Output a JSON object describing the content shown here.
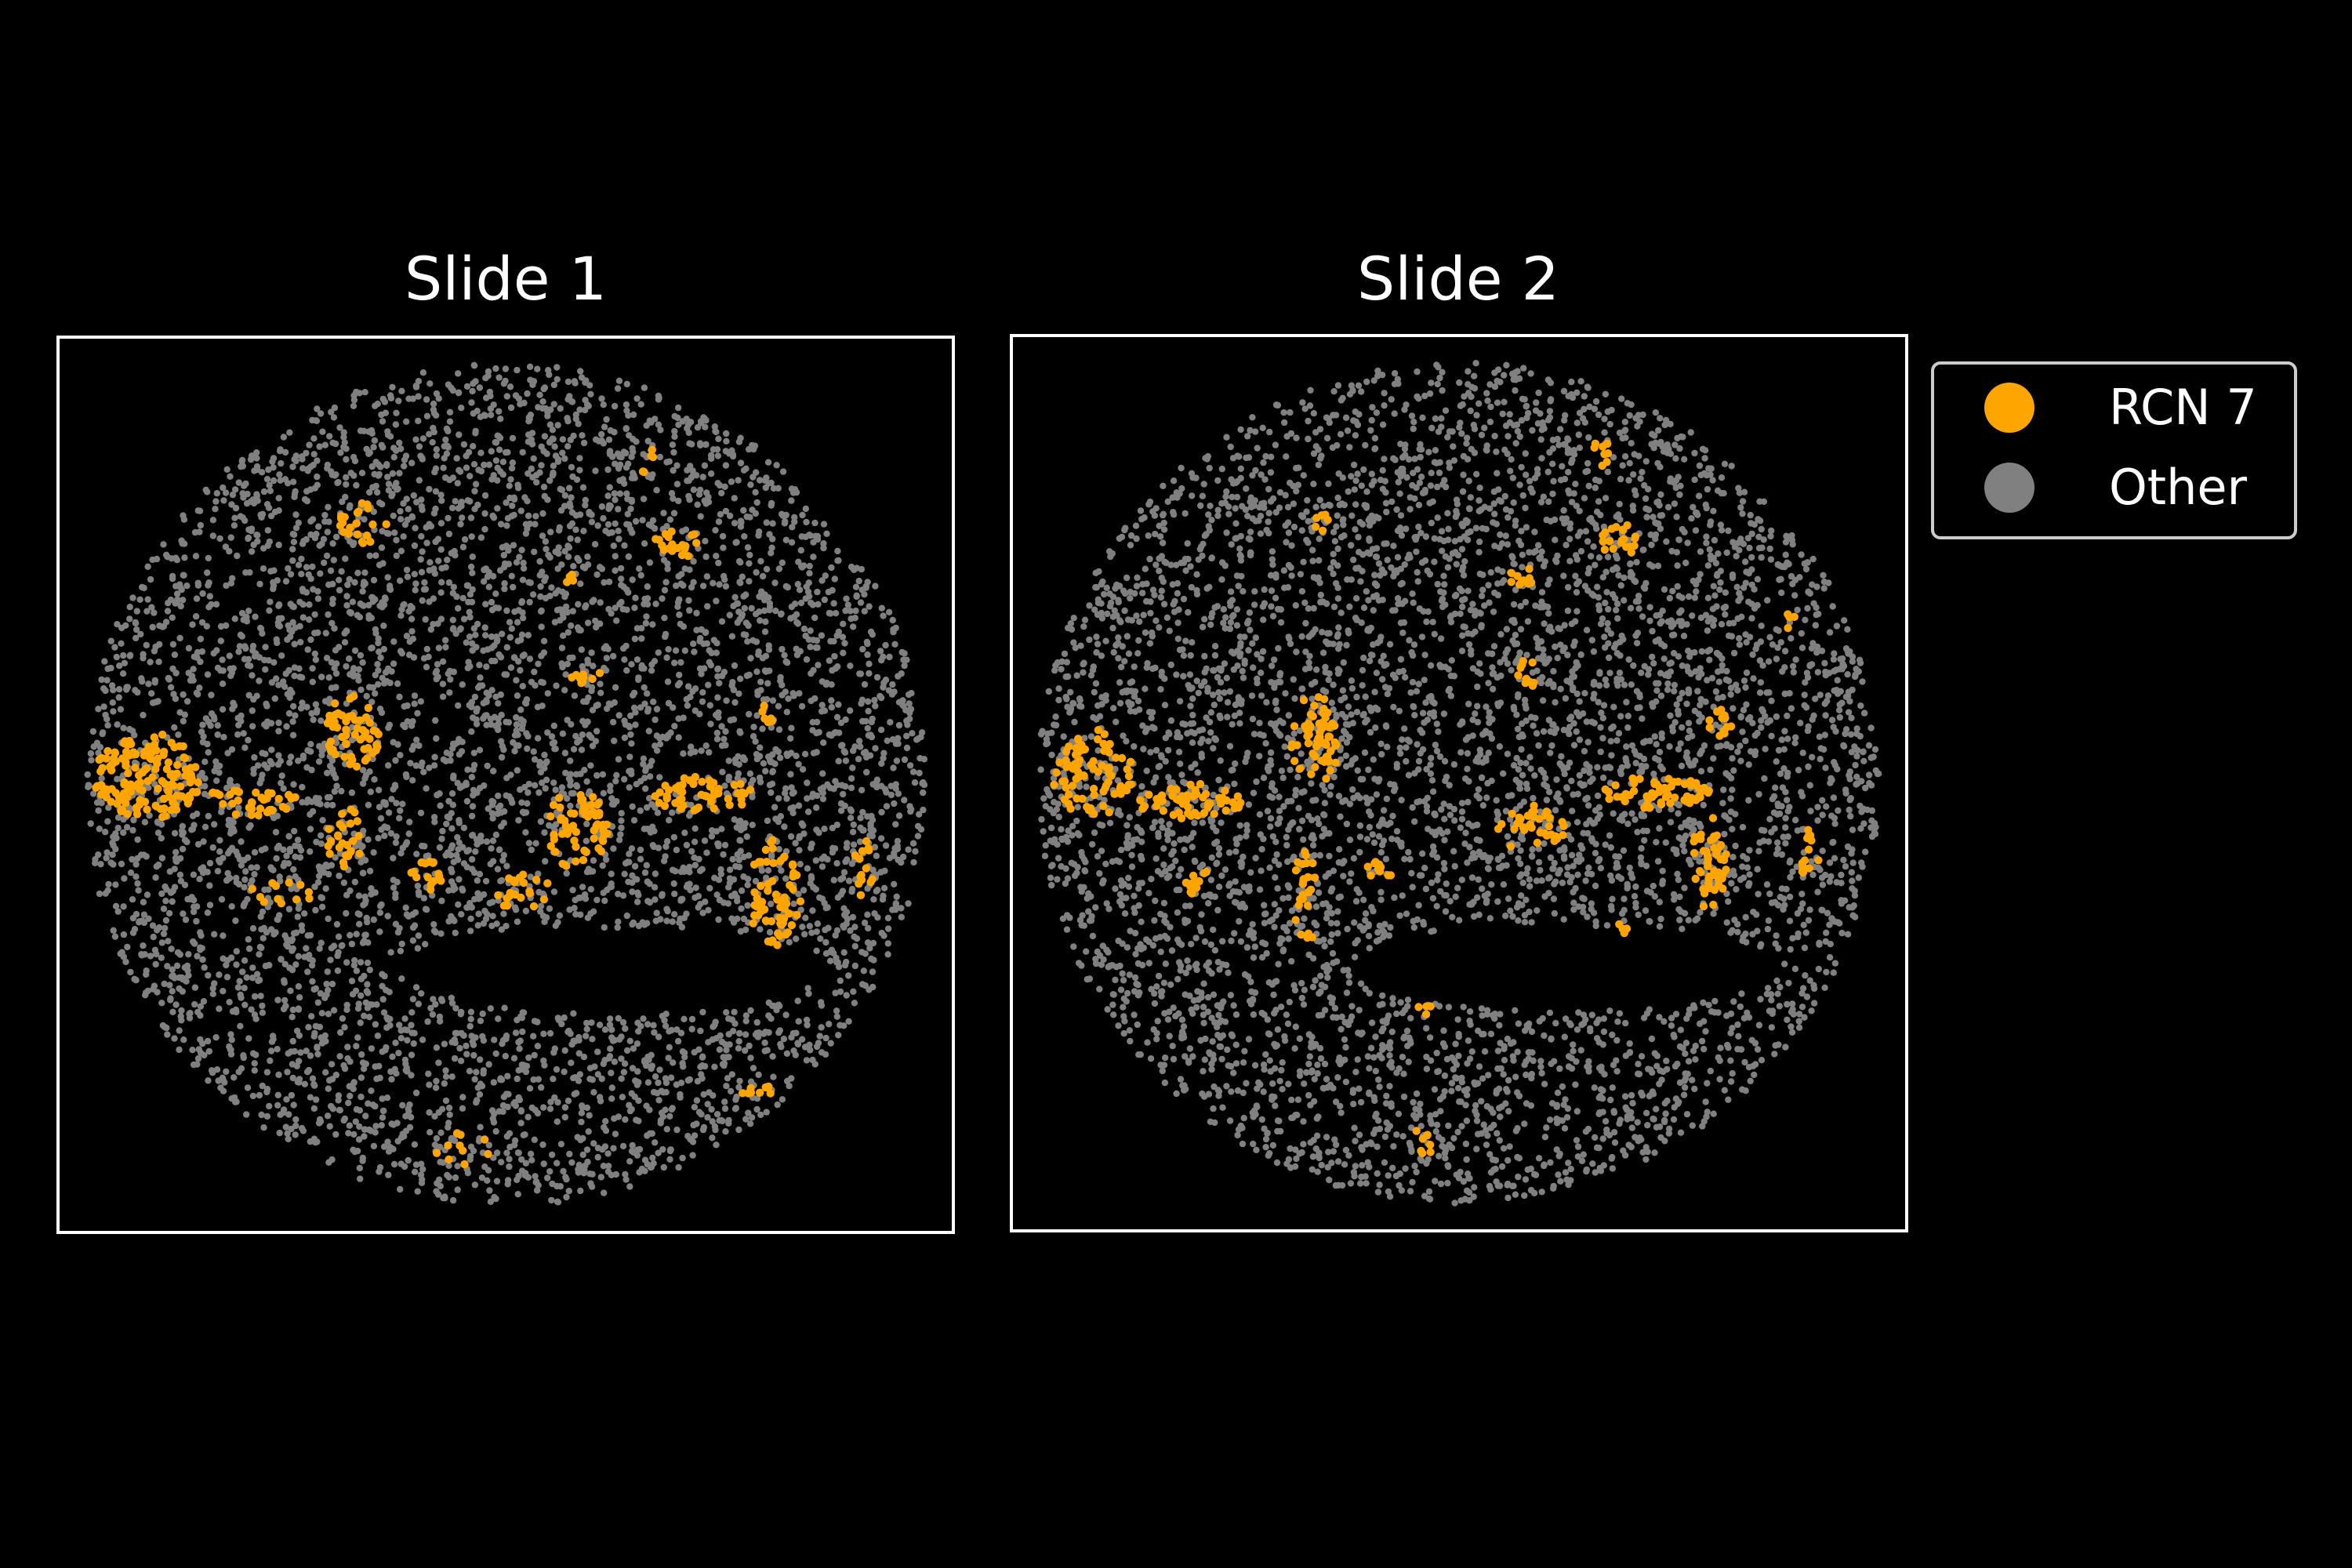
{
  "chart_data": {
    "type": "scatter",
    "background": "#000000",
    "legend": {
      "placement": "right",
      "entries": [
        {
          "label": "RCN 7",
          "color": "#FFA500"
        },
        {
          "label": "Other",
          "color": "#808080"
        }
      ]
    },
    "panels": [
      {
        "title": "Slide 1",
        "clusters": [
          {
            "x": 0.1,
            "y": 0.49,
            "rx": 0.06,
            "ry": 0.048,
            "n": 140
          },
          {
            "x": 0.33,
            "y": 0.44,
            "rx": 0.03,
            "ry": 0.045,
            "n": 55
          },
          {
            "x": 0.34,
            "y": 0.21,
            "rx": 0.028,
            "ry": 0.025,
            "n": 22
          },
          {
            "x": 0.69,
            "y": 0.23,
            "rx": 0.025,
            "ry": 0.02,
            "n": 20
          },
          {
            "x": 0.59,
            "y": 0.38,
            "rx": 0.018,
            "ry": 0.012,
            "n": 10
          },
          {
            "x": 0.58,
            "y": 0.55,
            "rx": 0.035,
            "ry": 0.045,
            "n": 60
          },
          {
            "x": 0.72,
            "y": 0.51,
            "rx": 0.055,
            "ry": 0.022,
            "n": 50
          },
          {
            "x": 0.8,
            "y": 0.62,
            "rx": 0.03,
            "ry": 0.06,
            "n": 60
          },
          {
            "x": 0.21,
            "y": 0.52,
            "rx": 0.06,
            "ry": 0.015,
            "n": 35
          },
          {
            "x": 0.32,
            "y": 0.56,
            "rx": 0.022,
            "ry": 0.035,
            "n": 25
          },
          {
            "x": 0.41,
            "y": 0.6,
            "rx": 0.02,
            "ry": 0.018,
            "n": 15
          },
          {
            "x": 0.52,
            "y": 0.62,
            "rx": 0.035,
            "ry": 0.02,
            "n": 20
          },
          {
            "x": 0.9,
            "y": 0.59,
            "rx": 0.012,
            "ry": 0.035,
            "n": 14
          },
          {
            "x": 0.79,
            "y": 0.42,
            "rx": 0.012,
            "ry": 0.012,
            "n": 6
          },
          {
            "x": 0.78,
            "y": 0.84,
            "rx": 0.02,
            "ry": 0.012,
            "n": 9
          },
          {
            "x": 0.45,
            "y": 0.91,
            "rx": 0.035,
            "ry": 0.025,
            "n": 10
          },
          {
            "x": 0.25,
            "y": 0.62,
            "rx": 0.04,
            "ry": 0.015,
            "n": 12
          },
          {
            "x": 0.66,
            "y": 0.14,
            "rx": 0.008,
            "ry": 0.02,
            "n": 5
          },
          {
            "x": 0.57,
            "y": 0.27,
            "rx": 0.01,
            "ry": 0.008,
            "n": 5
          }
        ]
      },
      {
        "title": "Slide 2",
        "clusters": [
          {
            "x": 0.09,
            "y": 0.49,
            "rx": 0.045,
            "ry": 0.05,
            "n": 80
          },
          {
            "x": 0.2,
            "y": 0.52,
            "rx": 0.06,
            "ry": 0.02,
            "n": 55
          },
          {
            "x": 0.34,
            "y": 0.45,
            "rx": 0.028,
            "ry": 0.05,
            "n": 60
          },
          {
            "x": 0.33,
            "y": 0.62,
            "rx": 0.015,
            "ry": 0.06,
            "n": 25
          },
          {
            "x": 0.58,
            "y": 0.55,
            "rx": 0.04,
            "ry": 0.025,
            "n": 35
          },
          {
            "x": 0.72,
            "y": 0.51,
            "rx": 0.06,
            "ry": 0.018,
            "n": 60
          },
          {
            "x": 0.78,
            "y": 0.59,
            "rx": 0.02,
            "ry": 0.055,
            "n": 45
          },
          {
            "x": 0.68,
            "y": 0.23,
            "rx": 0.022,
            "ry": 0.02,
            "n": 20
          },
          {
            "x": 0.57,
            "y": 0.27,
            "rx": 0.015,
            "ry": 0.012,
            "n": 10
          },
          {
            "x": 0.58,
            "y": 0.38,
            "rx": 0.015,
            "ry": 0.02,
            "n": 10
          },
          {
            "x": 0.79,
            "y": 0.43,
            "rx": 0.015,
            "ry": 0.018,
            "n": 12
          },
          {
            "x": 0.66,
            "y": 0.13,
            "rx": 0.01,
            "ry": 0.018,
            "n": 8
          },
          {
            "x": 0.35,
            "y": 0.21,
            "rx": 0.012,
            "ry": 0.012,
            "n": 6
          },
          {
            "x": 0.87,
            "y": 0.32,
            "rx": 0.008,
            "ry": 0.01,
            "n": 4
          },
          {
            "x": 0.21,
            "y": 0.61,
            "rx": 0.015,
            "ry": 0.018,
            "n": 12
          },
          {
            "x": 0.41,
            "y": 0.6,
            "rx": 0.015,
            "ry": 0.015,
            "n": 10
          },
          {
            "x": 0.89,
            "y": 0.58,
            "rx": 0.012,
            "ry": 0.03,
            "n": 12
          },
          {
            "x": 0.46,
            "y": 0.9,
            "rx": 0.015,
            "ry": 0.015,
            "n": 8
          },
          {
            "x": 0.46,
            "y": 0.75,
            "rx": 0.01,
            "ry": 0.01,
            "n": 4
          },
          {
            "x": 0.69,
            "y": 0.66,
            "rx": 0.012,
            "ry": 0.012,
            "n": 4
          }
        ]
      }
    ]
  }
}
